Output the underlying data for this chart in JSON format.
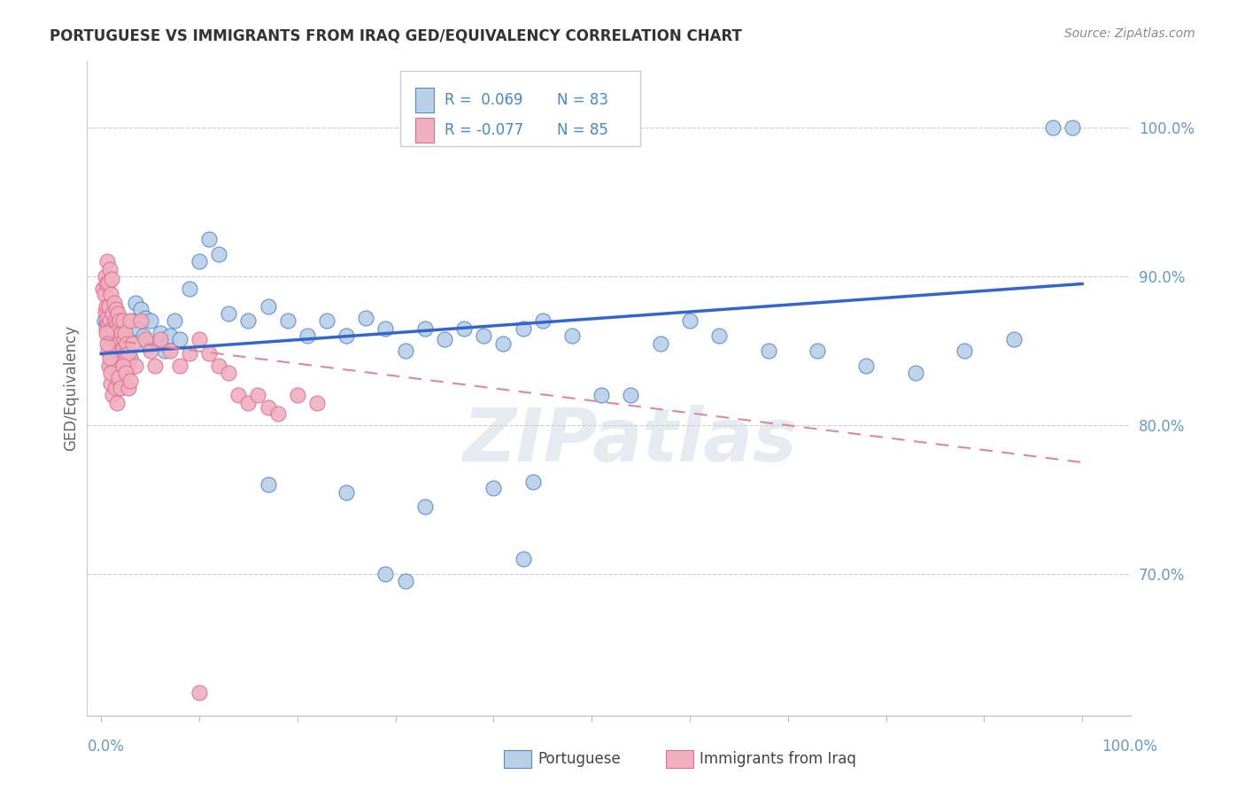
{
  "title": "PORTUGUESE VS IMMIGRANTS FROM IRAQ GED/EQUIVALENCY CORRELATION CHART",
  "source": "Source: ZipAtlas.com",
  "ylabel": "GED/Equivalency",
  "ytick_labels": [
    "70.0%",
    "80.0%",
    "90.0%",
    "100.0%"
  ],
  "ytick_values": [
    0.7,
    0.8,
    0.9,
    1.0
  ],
  "xlim": [
    -0.015,
    1.05
  ],
  "ylim": [
    0.605,
    1.045
  ],
  "legend_r_blue": "R =  0.069",
  "legend_n_blue": "N = 83",
  "legend_r_pink": "R = -0.077",
  "legend_n_pink": "N = 85",
  "blue_fill": "#b8d0e8",
  "blue_edge": "#5588cc",
  "pink_fill": "#f0b0c0",
  "pink_edge": "#dd7090",
  "blue_line_color": "#3366cc",
  "pink_line_color": "#dd8899",
  "watermark": "ZIPatlas",
  "title_color": "#333333",
  "source_color": "#888888",
  "axis_label_color": "#6699cc",
  "ylabel_color": "#666666",
  "legend_text_color": "#4488cc",
  "bottom_legend_color": "#444444",
  "blue_x": [
    0.003,
    0.005,
    0.007,
    0.008,
    0.01,
    0.01,
    0.012,
    0.013,
    0.015,
    0.015,
    0.016,
    0.017,
    0.018,
    0.019,
    0.02,
    0.02,
    0.021,
    0.022,
    0.023,
    0.024,
    0.025,
    0.025,
    0.026,
    0.027,
    0.028,
    0.03,
    0.032,
    0.035,
    0.038,
    0.04,
    0.043,
    0.045,
    0.048,
    0.05,
    0.055,
    0.06,
    0.065,
    0.07,
    0.075,
    0.08,
    0.09,
    0.1,
    0.11,
    0.12,
    0.13,
    0.15,
    0.17,
    0.19,
    0.21,
    0.23,
    0.25,
    0.27,
    0.29,
    0.31,
    0.33,
    0.35,
    0.37,
    0.39,
    0.41,
    0.43,
    0.45,
    0.48,
    0.51,
    0.54,
    0.57,
    0.6,
    0.63,
    0.68,
    0.73,
    0.78,
    0.83,
    0.88,
    0.93,
    0.97,
    0.99,
    0.17,
    0.25,
    0.33,
    0.4,
    0.44,
    0.29,
    0.31,
    0.43
  ],
  "blue_y": [
    0.87,
    0.868,
    0.88,
    0.862,
    0.875,
    0.855,
    0.86,
    0.872,
    0.865,
    0.85,
    0.858,
    0.87,
    0.852,
    0.866,
    0.855,
    0.845,
    0.86,
    0.85,
    0.84,
    0.856,
    0.848,
    0.835,
    0.852,
    0.842,
    0.858,
    0.845,
    0.87,
    0.882,
    0.865,
    0.878,
    0.86,
    0.872,
    0.855,
    0.87,
    0.855,
    0.862,
    0.85,
    0.86,
    0.87,
    0.858,
    0.892,
    0.91,
    0.925,
    0.915,
    0.875,
    0.87,
    0.88,
    0.87,
    0.86,
    0.87,
    0.86,
    0.872,
    0.865,
    0.85,
    0.865,
    0.858,
    0.865,
    0.86,
    0.855,
    0.865,
    0.87,
    0.86,
    0.82,
    0.82,
    0.855,
    0.87,
    0.86,
    0.85,
    0.85,
    0.84,
    0.835,
    0.85,
    0.858,
    1.0,
    1.0,
    0.76,
    0.755,
    0.745,
    0.758,
    0.762,
    0.7,
    0.695,
    0.71
  ],
  "pink_x": [
    0.002,
    0.003,
    0.004,
    0.004,
    0.005,
    0.005,
    0.005,
    0.006,
    0.006,
    0.007,
    0.007,
    0.008,
    0.008,
    0.009,
    0.009,
    0.01,
    0.01,
    0.011,
    0.011,
    0.012,
    0.012,
    0.013,
    0.013,
    0.014,
    0.014,
    0.015,
    0.015,
    0.016,
    0.016,
    0.017,
    0.017,
    0.018,
    0.018,
    0.019,
    0.02,
    0.02,
    0.021,
    0.022,
    0.022,
    0.023,
    0.024,
    0.025,
    0.026,
    0.027,
    0.028,
    0.03,
    0.032,
    0.035,
    0.04,
    0.045,
    0.05,
    0.055,
    0.06,
    0.07,
    0.08,
    0.09,
    0.1,
    0.11,
    0.12,
    0.13,
    0.14,
    0.15,
    0.16,
    0.17,
    0.18,
    0.2,
    0.22,
    0.01,
    0.012,
    0.014,
    0.015,
    0.016,
    0.007,
    0.008,
    0.009,
    0.01,
    0.005,
    0.006,
    0.018,
    0.02,
    0.022,
    0.025,
    0.028,
    0.03,
    0.1
  ],
  "pink_y": [
    0.892,
    0.888,
    0.9,
    0.876,
    0.895,
    0.88,
    0.865,
    0.91,
    0.872,
    0.896,
    0.868,
    0.88,
    0.86,
    0.905,
    0.87,
    0.888,
    0.858,
    0.898,
    0.865,
    0.875,
    0.855,
    0.882,
    0.862,
    0.87,
    0.852,
    0.878,
    0.858,
    0.868,
    0.848,
    0.875,
    0.856,
    0.865,
    0.845,
    0.87,
    0.858,
    0.842,
    0.862,
    0.87,
    0.852,
    0.858,
    0.862,
    0.848,
    0.855,
    0.84,
    0.848,
    0.87,
    0.855,
    0.84,
    0.87,
    0.858,
    0.85,
    0.84,
    0.858,
    0.85,
    0.84,
    0.848,
    0.858,
    0.848,
    0.84,
    0.835,
    0.82,
    0.815,
    0.82,
    0.812,
    0.808,
    0.82,
    0.815,
    0.828,
    0.82,
    0.825,
    0.832,
    0.815,
    0.85,
    0.84,
    0.845,
    0.835,
    0.862,
    0.855,
    0.832,
    0.825,
    0.84,
    0.835,
    0.825,
    0.83,
    0.62
  ],
  "blue_line_x": [
    0.0,
    1.0
  ],
  "blue_line_y": [
    0.848,
    0.895
  ],
  "pink_line_x": [
    0.0,
    1.0
  ],
  "pink_line_y": [
    0.858,
    0.775
  ]
}
